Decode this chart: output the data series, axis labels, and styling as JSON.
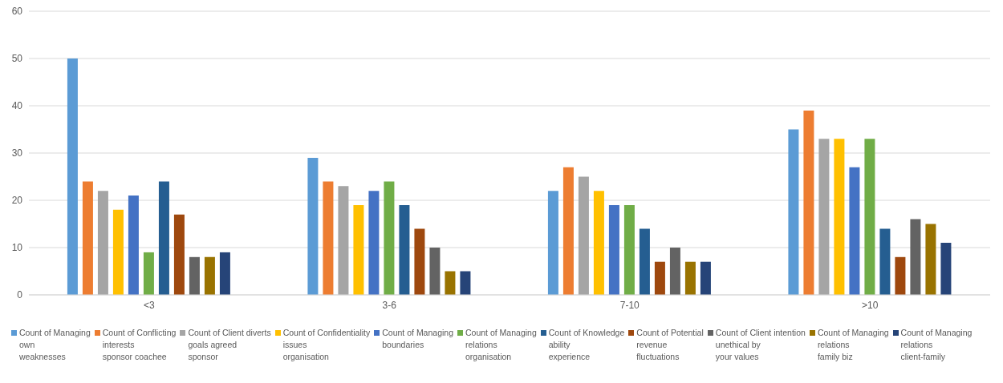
{
  "chart_data": {
    "type": "bar",
    "categories": [
      "<3",
      "3-6",
      "7-10",
      ">10"
    ],
    "ylim": [
      0,
      60
    ],
    "yticks": [
      0,
      10,
      20,
      30,
      40,
      50,
      60
    ],
    "grid": "y",
    "legend": "bottom",
    "series": [
      {
        "name": "Count of Managing\nown\nweaknesses",
        "color": "#5b9bd5",
        "values": [
          50,
          29,
          22,
          35
        ]
      },
      {
        "name": "Count of Conflicting\ninterests\nsponsor coachee",
        "color": "#ed7d31",
        "values": [
          24,
          24,
          27,
          39
        ]
      },
      {
        "name": "Count of Client diverts\ngoals agreed\nsponsor",
        "color": "#a5a5a5",
        "values": [
          22,
          23,
          25,
          33
        ]
      },
      {
        "name": "Count of Confidentiality\nissues\norganisation",
        "color": "#ffc000",
        "values": [
          18,
          19,
          22,
          33
        ]
      },
      {
        "name": "Count of Managing\nboundaries",
        "color": "#4472c4",
        "values": [
          21,
          22,
          19,
          27
        ]
      },
      {
        "name": "Count of Managing\nrelations\norganisation",
        "color": "#70ad47",
        "values": [
          9,
          24,
          19,
          33
        ]
      },
      {
        "name": "Count of Knowledge\nability\nexperience",
        "color": "#255e91",
        "values": [
          24,
          19,
          14,
          14
        ]
      },
      {
        "name": "Count of Potential\nrevenue\nfluctuations",
        "color": "#9e480e",
        "values": [
          17,
          14,
          7,
          8
        ]
      },
      {
        "name": "Count of Client intention\nunethical by\nyour values",
        "color": "#636363",
        "values": [
          8,
          10,
          10,
          16
        ]
      },
      {
        "name": "Count of Managing\nrelations\nfamily biz",
        "color": "#997300",
        "values": [
          8,
          5,
          7,
          15
        ]
      },
      {
        "name": "Count of Managing\nrelations\nclient-family",
        "color": "#264478",
        "values": [
          9,
          5,
          7,
          11
        ]
      }
    ]
  }
}
